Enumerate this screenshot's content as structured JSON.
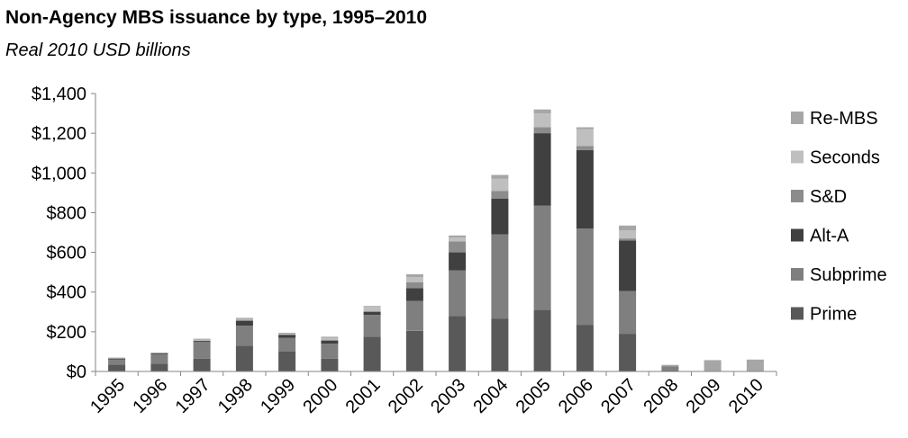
{
  "chart_data": {
    "type": "bar",
    "stacked": true,
    "title": "Non-Agency MBS issuance by type, 1995–2010",
    "subtitle": "Real 2010 USD billions",
    "xlabel": "",
    "ylabel": "",
    "ylim": [
      0,
      1400
    ],
    "yticks": [
      "$0",
      "$200",
      "$400",
      "$600",
      "$800",
      "$1,000",
      "$1,200",
      "$1,400"
    ],
    "grid": false,
    "legend_position": "right",
    "categories": [
      "1995",
      "1996",
      "1997",
      "1998",
      "1999",
      "2000",
      "2001",
      "2002",
      "2003",
      "2004",
      "2005",
      "2006",
      "2007",
      "2008",
      "2009",
      "2010"
    ],
    "series": [
      {
        "name": "Prime",
        "color": "#595959",
        "values": [
          35,
          40,
          65,
          130,
          100,
          65,
          175,
          205,
          280,
          265,
          310,
          235,
          190,
          5,
          0,
          0
        ]
      },
      {
        "name": "Subprime",
        "color": "#7f7f7f",
        "values": [
          25,
          45,
          85,
          100,
          70,
          75,
          110,
          150,
          230,
          425,
          525,
          485,
          215,
          20,
          0,
          0
        ]
      },
      {
        "name": "Alt-A",
        "color": "#404040",
        "values": [
          5,
          5,
          5,
          25,
          15,
          15,
          15,
          65,
          90,
          180,
          365,
          395,
          255,
          0,
          0,
          0
        ]
      },
      {
        "name": "S&D",
        "color": "#8c8c8c",
        "values": [
          0,
          0,
          0,
          5,
          0,
          5,
          5,
          30,
          55,
          40,
          30,
          20,
          10,
          0,
          0,
          0
        ]
      },
      {
        "name": "Seconds",
        "color": "#bfbfbf",
        "values": [
          0,
          0,
          5,
          5,
          5,
          10,
          20,
          25,
          20,
          60,
          70,
          85,
          40,
          0,
          0,
          0
        ]
      },
      {
        "name": "Re-MBS",
        "color": "#a6a6a6",
        "values": [
          5,
          5,
          5,
          5,
          5,
          5,
          5,
          15,
          10,
          20,
          20,
          10,
          25,
          8,
          57,
          60
        ]
      }
    ]
  }
}
